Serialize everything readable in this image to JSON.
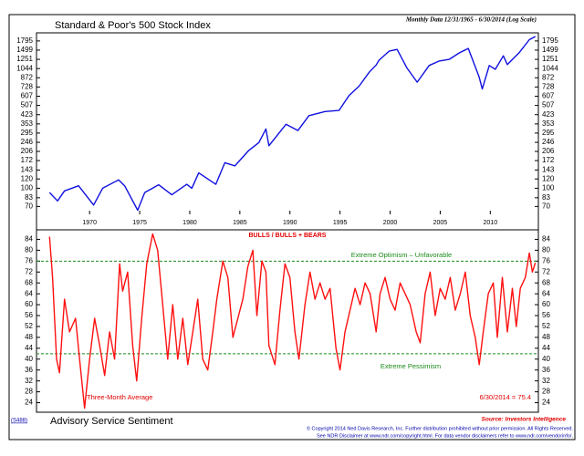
{
  "chart_data": [
    {
      "type": "line",
      "title": "Standard & Poor's 500 Stock Index",
      "subtitle": "Monthly Data 12/31/1965 - 6/30/2014 (Log Scale)",
      "log_scale": true,
      "color": "#1010e0",
      "x": [
        1966.0,
        1966.8,
        1967.5,
        1968.9,
        1970.4,
        1971.3,
        1972.9,
        1973.5,
        1974.8,
        1975.5,
        1976.9,
        1978.2,
        1979.7,
        1980.2,
        1980.9,
        1982.6,
        1983.5,
        1984.5,
        1985.9,
        1986.9,
        1987.6,
        1987.9,
        1989.6,
        1990.8,
        1991.9,
        1993.5,
        1994.9,
        1995.9,
        1996.9,
        1997.9,
        1998.6,
        1998.9,
        1999.9,
        2000.7,
        2001.7,
        2002.7,
        2003.9,
        2004.9,
        2005.9,
        2006.9,
        2007.8,
        2008.9,
        2009.2,
        2009.9,
        2010.5,
        2011.3,
        2011.7,
        2012.9,
        2013.9,
        2014.5
      ],
      "values": [
        92,
        78,
        95,
        105,
        72,
        100,
        118,
        105,
        65,
        92,
        107,
        88,
        108,
        100,
        135,
        108,
        165,
        155,
        210,
        245,
        320,
        230,
        350,
        310,
        415,
        450,
        460,
        615,
        740,
        970,
        1120,
        1230,
        1470,
        1520,
        1050,
        800,
        1110,
        1210,
        1250,
        1420,
        1550,
        880,
        700,
        1110,
        1030,
        1340,
        1130,
        1430,
        1840,
        1960
      ],
      "xlim": [
        1964.7,
        2014.8
      ],
      "xticks": [
        1970,
        1975,
        1980,
        1985,
        1990,
        1995,
        2000,
        2005,
        2010
      ],
      "ylim": [
        60,
        2030
      ],
      "yticks": [
        70,
        83,
        100,
        120,
        143,
        172,
        206,
        246,
        295,
        353,
        423,
        507,
        607,
        728,
        872,
        1044,
        1251,
        1499,
        1795
      ]
    },
    {
      "type": "line",
      "title": "BULLS / BULLS + BEARS",
      "color": "#ff1010",
      "x": [
        1966.0,
        1966.3,
        1966.7,
        1967.0,
        1967.5,
        1968.0,
        1968.6,
        1969.0,
        1969.5,
        1970.0,
        1970.5,
        1971.0,
        1971.5,
        1972.0,
        1972.5,
        1973.0,
        1973.3,
        1973.8,
        1974.3,
        1974.7,
        1975.2,
        1975.7,
        1976.3,
        1976.8,
        1977.3,
        1977.8,
        1978.3,
        1978.8,
        1979.3,
        1979.8,
        1980.3,
        1980.8,
        1981.3,
        1981.8,
        1982.3,
        1982.7,
        1983.3,
        1983.8,
        1984.3,
        1984.8,
        1985.3,
        1985.8,
        1986.3,
        1986.7,
        1987.2,
        1987.6,
        1987.9,
        1988.5,
        1989.0,
        1989.5,
        1990.0,
        1990.5,
        1990.9,
        1991.5,
        1992.0,
        1992.5,
        1993.0,
        1993.5,
        1994.0,
        1994.6,
        1995.0,
        1995.5,
        1996.0,
        1996.5,
        1997.0,
        1997.5,
        1998.0,
        1998.6,
        1999.0,
        1999.5,
        2000.0,
        2000.5,
        2001.0,
        2001.5,
        2002.0,
        2002.6,
        2003.0,
        2003.5,
        2004.0,
        2004.5,
        2005.0,
        2005.5,
        2006.0,
        2006.5,
        2007.0,
        2007.5,
        2008.0,
        2008.5,
        2008.9,
        2009.3,
        2009.8,
        2010.3,
        2010.7,
        2011.2,
        2011.7,
        2012.2,
        2012.6,
        2013.0,
        2013.5,
        2013.9,
        2014.2,
        2014.5
      ],
      "values": [
        85,
        70,
        40,
        35,
        62,
        50,
        55,
        40,
        22,
        40,
        55,
        45,
        34,
        50,
        40,
        75,
        65,
        72,
        45,
        32,
        55,
        75,
        86,
        80,
        60,
        40,
        60,
        40,
        55,
        38,
        50,
        62,
        40,
        36,
        50,
        62,
        76,
        70,
        48,
        55,
        62,
        74,
        80,
        56,
        76,
        72,
        45,
        38,
        58,
        75,
        70,
        50,
        40,
        60,
        72,
        62,
        68,
        62,
        66,
        44,
        36,
        50,
        58,
        66,
        60,
        68,
        64,
        50,
        64,
        70,
        62,
        58,
        68,
        64,
        60,
        50,
        46,
        64,
        72,
        56,
        66,
        62,
        70,
        58,
        64,
        72,
        56,
        48,
        38,
        50,
        64,
        68,
        48,
        70,
        50,
        66,
        52,
        66,
        70,
        79,
        72,
        75.4
      ],
      "xlim": [
        1964.7,
        2014.8
      ],
      "ylim": [
        20.5,
        87.5
      ],
      "yticks": [
        24,
        28,
        32,
        36,
        40,
        44,
        48,
        52,
        56,
        60,
        64,
        68,
        72,
        76,
        80,
        84
      ],
      "reference_lines": [
        76,
        42
      ],
      "reference_color": "#1a8a1a",
      "annotations": [
        "Extreme Optimism – Unfavorable",
        "Extreme Pessimism",
        "Three-Month Average",
        "6/30/2014 = 75.4"
      ]
    }
  ],
  "footer": {
    "code": "(S488)",
    "title": "Advisory Service Sentiment",
    "source": "Source: Investors Intelligence",
    "copyright": "© Copyright 2014 Ned Davis Research, Inc.  Further distribution prohibited without prior permission.  All Rights Reserved.",
    "disclaimer": "See NDR Disclaimer at www.ndr.com/copyright.html.  For data vendor disclaimers refer to www.ndr.com/vendorinfo/."
  }
}
